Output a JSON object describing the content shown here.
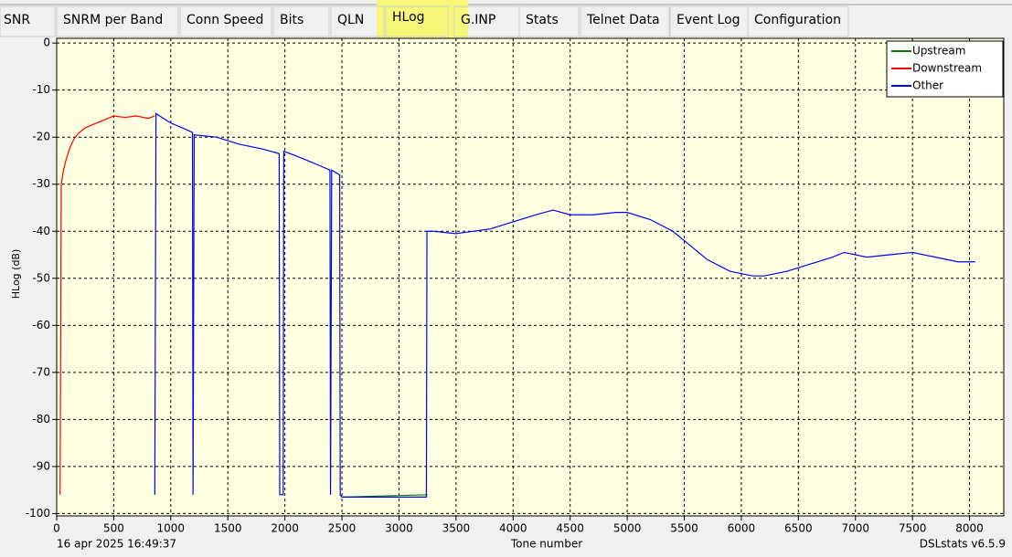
{
  "tabs": [
    "SNR",
    "SNRM per Band",
    "Conn Speed",
    "Bits",
    "QLN",
    "HLog",
    "G.INP",
    "Stats",
    "Telnet Data",
    "Event Log",
    "Configuration"
  ],
  "chart_data": {
    "type": "line",
    "ylabel": "HLog (dB)",
    "xlabel": "Tone number",
    "xlim": [
      0,
      8300
    ],
    "ylim": [
      -100.5,
      1
    ],
    "xticks": [
      0,
      500,
      1000,
      1500,
      2000,
      2500,
      3000,
      3500,
      4000,
      4500,
      5000,
      5500,
      6000,
      6500,
      7000,
      7500,
      8000
    ],
    "yticks": [
      0,
      -10,
      -20,
      -30,
      -40,
      -50,
      -60,
      -70,
      -80,
      -90,
      -100
    ],
    "grid": true,
    "legend": "upper right",
    "series": [
      {
        "name": "Upstream",
        "color": "#008000",
        "x": [
          2500,
          3250
        ],
        "values": [
          -96.5,
          -96
        ]
      },
      {
        "name": "Downstream",
        "color": "#ff0000",
        "x": [
          30,
          40,
          60,
          80,
          120,
          160,
          200,
          250,
          300,
          400,
          500,
          600,
          700,
          800,
          860
        ],
        "values": [
          -96,
          -30,
          -27,
          -25,
          -22,
          -20,
          -19,
          -18,
          -17.5,
          -16.5,
          -15.5,
          -15.8,
          -15.5,
          -16,
          -15.5
        ]
      },
      {
        "name": "Other",
        "color": "#0000ff",
        "x": [
          860,
          870,
          1000,
          1100,
          1190,
          1195,
          1205,
          1400,
          1600,
          1800,
          1950,
          1955,
          1985,
          1990,
          2100,
          2200,
          2300,
          2395,
          2400,
          2410,
          2480,
          2485,
          2500,
          3240,
          3245,
          3300,
          3500,
          3800,
          4000,
          4200,
          4350,
          4500,
          4700,
          4900,
          5000,
          5200,
          5400,
          5500,
          5700,
          5900,
          6100,
          6200,
          6400,
          6600,
          6800,
          6900,
          7100,
          7300,
          7500,
          7700,
          7900,
          8050
        ],
        "values": [
          -96,
          -15,
          -17,
          -18,
          -19,
          -96,
          -19.5,
          -20,
          -21.5,
          -22.5,
          -23.5,
          -96,
          -96,
          -23,
          -24,
          -25,
          -26,
          -27,
          -96,
          -27,
          -28,
          -96,
          -96.5,
          -96.5,
          -40,
          -40,
          -40.5,
          -39.5,
          -38,
          -36.5,
          -35.5,
          -36.5,
          -36.5,
          -36,
          -36,
          -37.5,
          -40,
          -42,
          -46,
          -48.5,
          -49.5,
          -49.5,
          -48.5,
          -47,
          -45.5,
          -44.5,
          -45.5,
          -45,
          -44.5,
          -45.5,
          -46.5,
          -46.5
        ]
      }
    ]
  },
  "status": {
    "timestamp": "16 apr 2025 16:49:37",
    "version": "DSLstats v6.5.9"
  }
}
